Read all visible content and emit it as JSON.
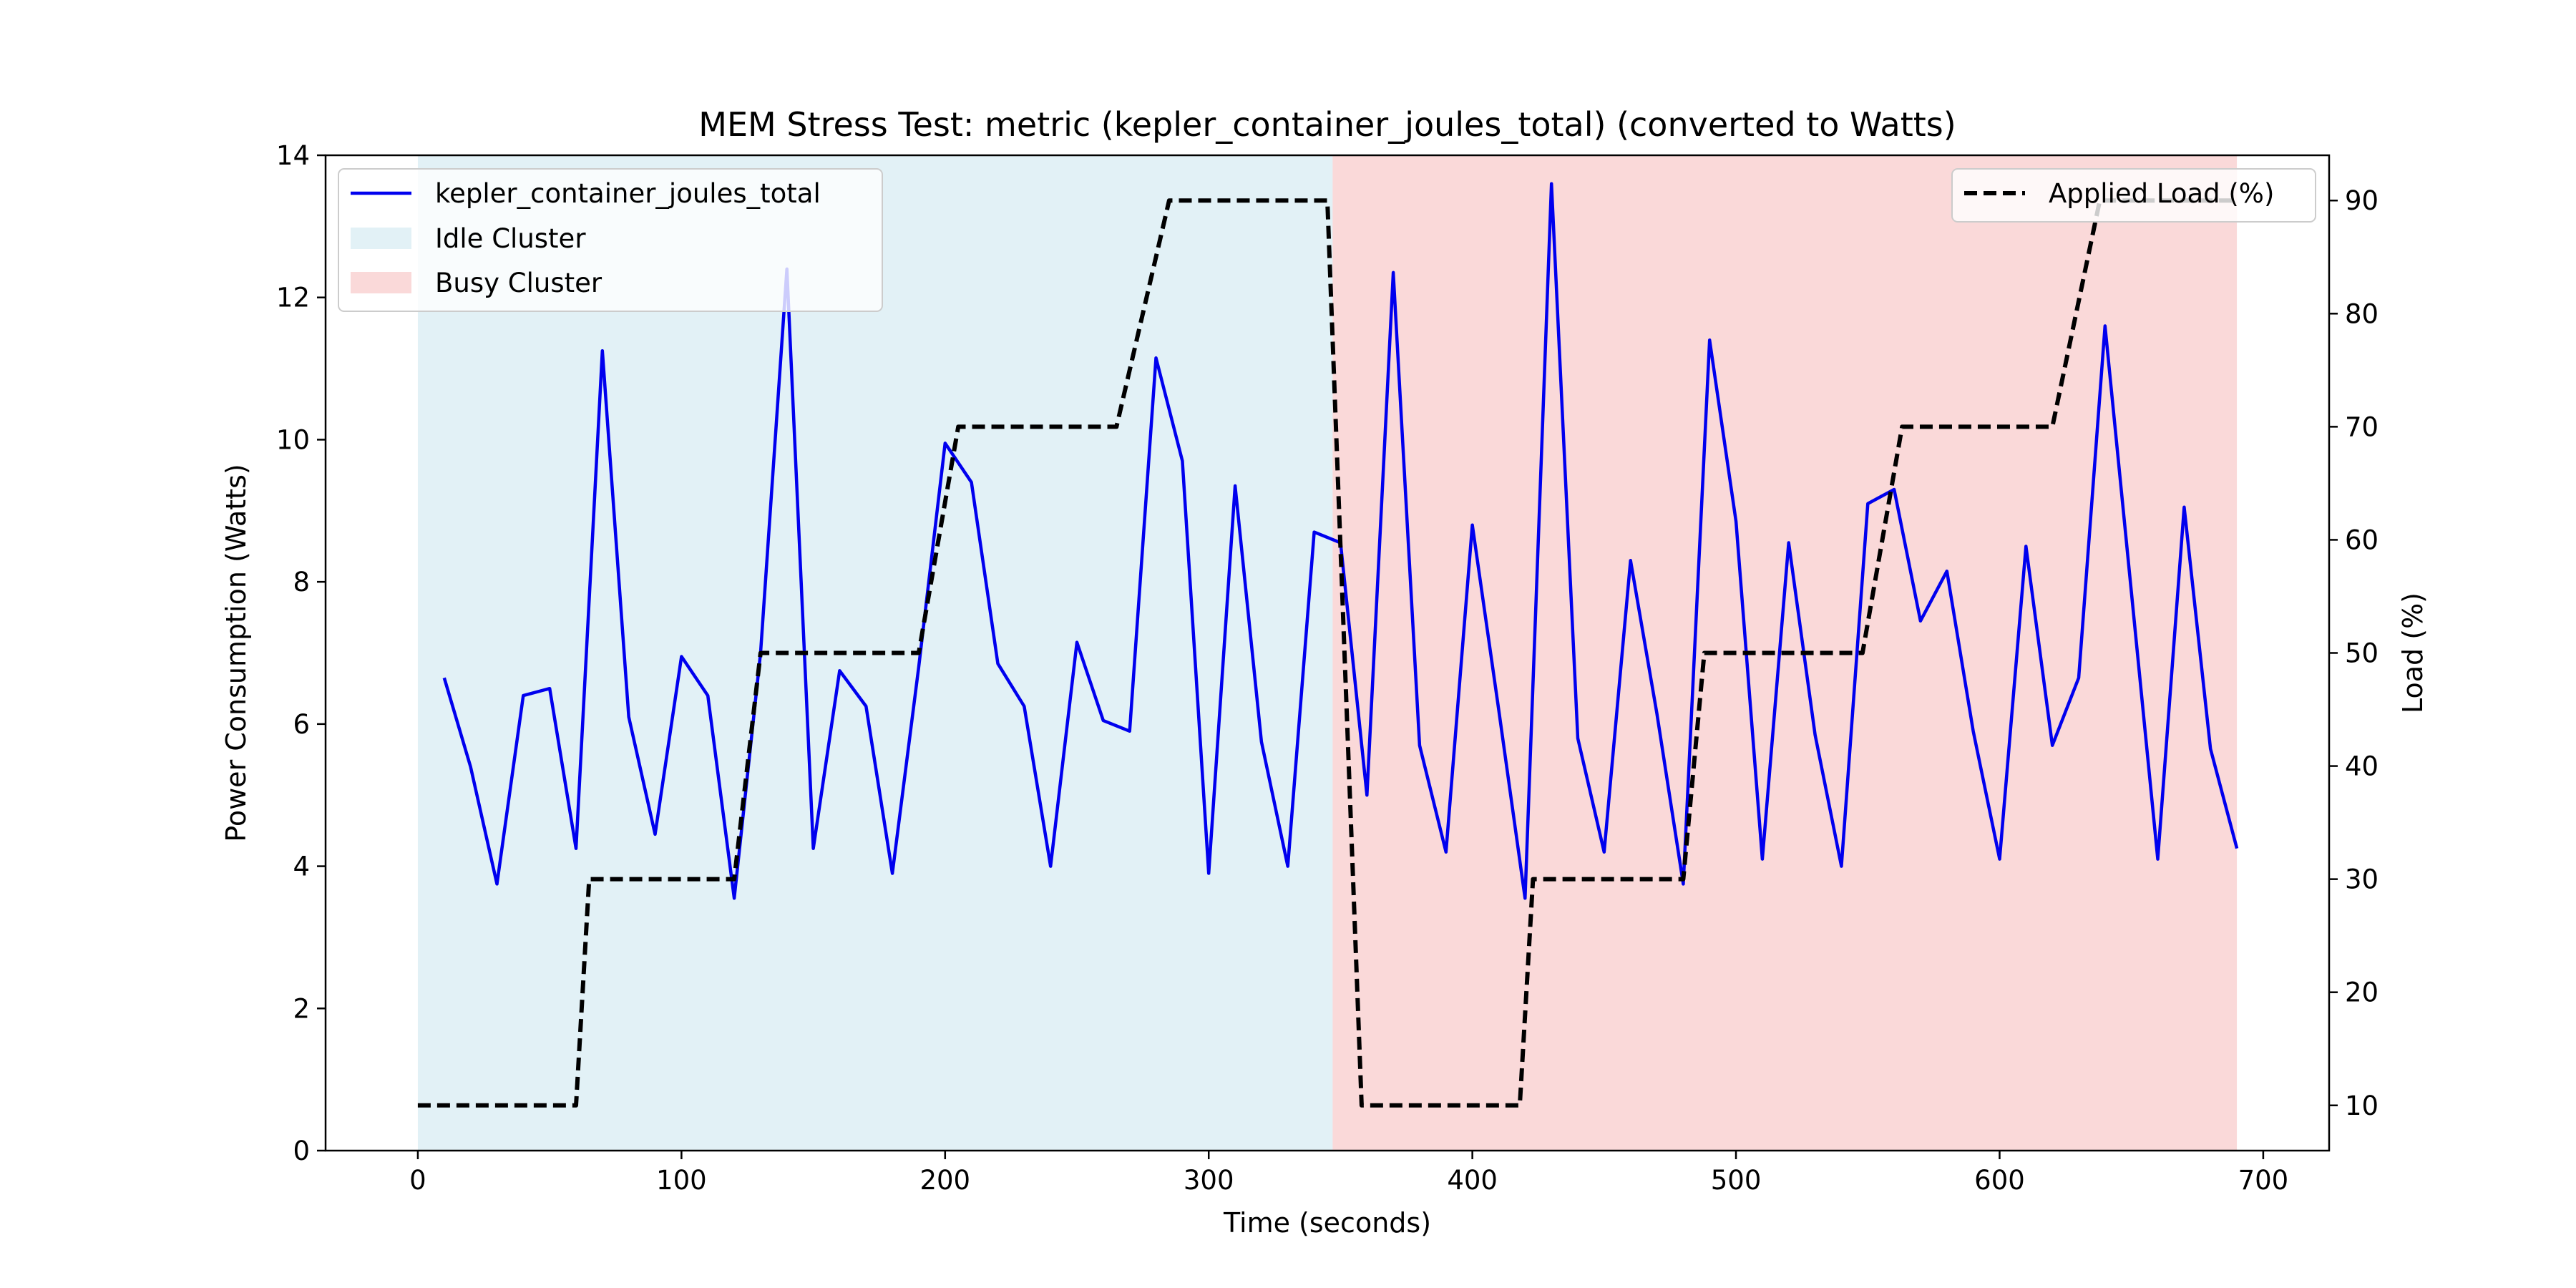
{
  "chart_data": {
    "type": "line",
    "title": "MEM Stress Test: metric (kepler_container_joules_total) (converted to Watts)",
    "xlabel": "Time (seconds)",
    "ylabel": "Power Consumption (Watts)",
    "y2label": "Load (%)",
    "xlim": [
      -35,
      725
    ],
    "ylim": [
      0,
      14
    ],
    "y2lim": [
      6,
      94
    ],
    "x_ticks": [
      0,
      100,
      200,
      300,
      400,
      500,
      600,
      700
    ],
    "y_ticks": [
      0,
      2,
      4,
      6,
      8,
      10,
      12,
      14
    ],
    "y2_ticks": [
      10,
      20,
      30,
      40,
      50,
      60,
      70,
      80,
      90
    ],
    "grid": false,
    "colors": {
      "power": "#0000ee",
      "load": "#000000",
      "idle": "#add8e6",
      "busy": "#f08080",
      "ylabel": "#0000ee"
    },
    "regions": [
      {
        "name": "Idle Cluster",
        "x_start": 0,
        "x_end": 347,
        "color": "#add8e6",
        "alpha": 0.35
      },
      {
        "name": "Busy Cluster",
        "x_start": 347,
        "x_end": 690,
        "color": "#f08080",
        "alpha": 0.3
      }
    ],
    "series": [
      {
        "name": "kepler_container_joules_total",
        "axis": "left",
        "style": "solid",
        "x": [
          10,
          20,
          30,
          40,
          50,
          60,
          70,
          80,
          90,
          100,
          110,
          120,
          130,
          140,
          150,
          160,
          170,
          180,
          190,
          200,
          210,
          220,
          230,
          240,
          250,
          260,
          270,
          280,
          290,
          300,
          310,
          320,
          330,
          340,
          350,
          360,
          370,
          380,
          390,
          400,
          410,
          420,
          430,
          440,
          450,
          460,
          470,
          480,
          490,
          500,
          510,
          520,
          530,
          540,
          550,
          560,
          570,
          580,
          590,
          600,
          610,
          620,
          630,
          640,
          650,
          660,
          670,
          680,
          690
        ],
        "values": [
          6.65,
          5.4,
          3.75,
          6.4,
          6.5,
          4.25,
          11.25,
          6.1,
          4.45,
          6.95,
          6.4,
          3.55,
          7.0,
          12.4,
          4.25,
          6.75,
          6.25,
          3.9,
          6.8,
          9.95,
          9.4,
          6.85,
          6.25,
          4.0,
          7.15,
          6.05,
          5.9,
          11.15,
          9.7,
          3.9,
          9.35,
          5.75,
          4.0,
          8.7,
          8.55,
          5.0,
          12.35,
          5.7,
          4.2,
          8.8,
          6.2,
          3.55,
          13.6,
          5.8,
          4.2,
          8.3,
          6.15,
          3.75,
          11.4,
          8.85,
          4.1,
          8.55,
          5.85,
          4.0,
          9.1,
          9.3,
          7.45,
          8.15,
          5.9,
          4.1,
          8.5,
          5.7,
          6.65,
          11.6,
          7.85,
          4.1,
          9.05,
          5.65,
          4.25
        ]
      },
      {
        "name": "Applied Load (%)",
        "axis": "right",
        "style": "dashed",
        "x": [
          0,
          60,
          65,
          120,
          130,
          190,
          205,
          265,
          285,
          345,
          358,
          418,
          423,
          480,
          488,
          548,
          563,
          620,
          638,
          690
        ],
        "values": [
          10,
          10,
          30,
          30,
          50,
          50,
          70,
          70,
          90,
          90,
          10,
          10,
          30,
          30,
          50,
          50,
          70,
          70,
          90,
          90
        ]
      }
    ],
    "legend_left": [
      "kepler_container_joules_total",
      "Idle Cluster",
      "Busy Cluster"
    ],
    "legend_right": [
      "Applied Load (%)"
    ],
    "legend_left_placement": "upper left",
    "legend_right_placement": "upper right"
  }
}
